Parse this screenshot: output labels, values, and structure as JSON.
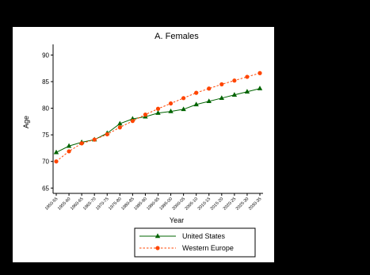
{
  "chart_data": {
    "type": "line",
    "title": "A. Females",
    "xlabel": "Year",
    "ylabel": "Age",
    "ylim": [
      64,
      92
    ],
    "yticks": [
      65,
      70,
      75,
      80,
      85,
      90
    ],
    "grid": false,
    "legend_position": "bottom",
    "categories": [
      "1950-55",
      "1955-60",
      "1960-65",
      "1965-70",
      "1970-75",
      "1975-80",
      "1980-85",
      "1985-90",
      "1990-95",
      "1995-00",
      "2000-05",
      "2005-10",
      "2010-15",
      "2015-20",
      "2020-25",
      "2025-30",
      "2030-35"
    ],
    "series": [
      {
        "name": "United States",
        "color": "#006400",
        "line": "solid",
        "marker": "triangle",
        "values": [
          71.7,
          72.9,
          73.6,
          74.1,
          75.3,
          77.1,
          78.0,
          78.4,
          79.1,
          79.4,
          79.8,
          80.7,
          81.3,
          81.9,
          82.5,
          83.1,
          83.7
        ]
      },
      {
        "name": "Western Europe",
        "color": "#ff4500",
        "line": "dashed",
        "marker": "circle",
        "values": [
          70.0,
          71.9,
          73.4,
          74.1,
          75.1,
          76.4,
          77.6,
          78.8,
          79.9,
          80.9,
          81.9,
          82.9,
          83.7,
          84.5,
          85.2,
          85.9,
          86.6
        ]
      }
    ]
  }
}
